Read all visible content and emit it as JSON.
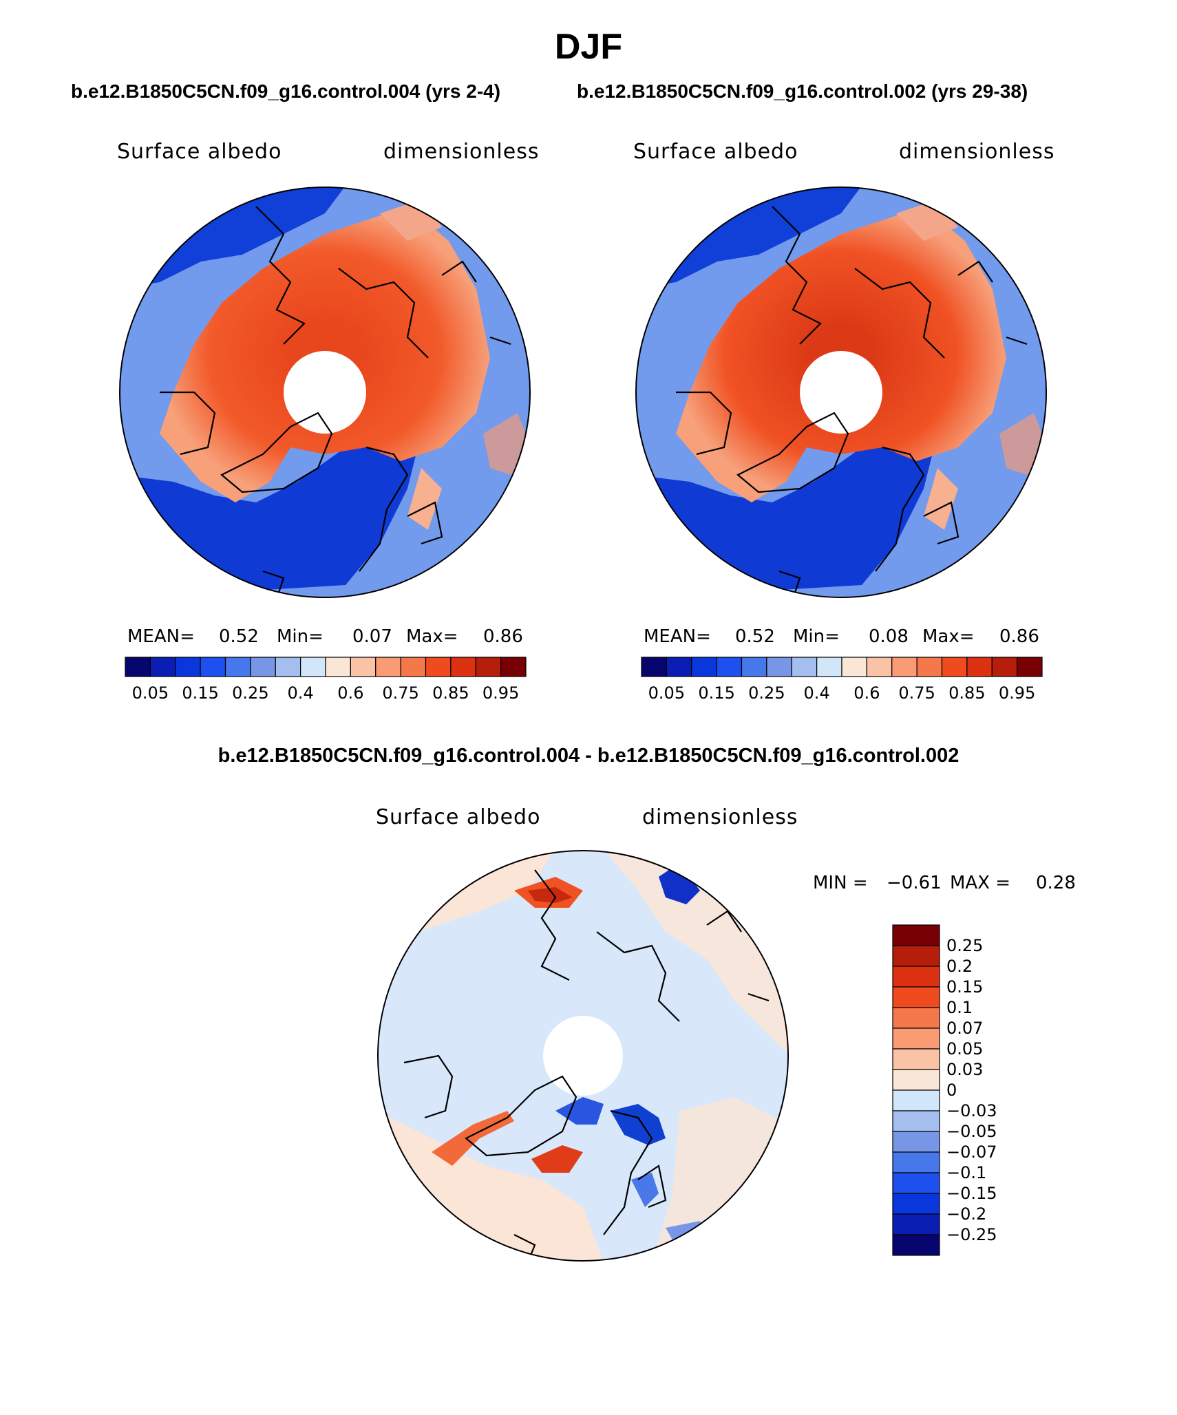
{
  "figure": {
    "title": "DJF",
    "case1_label": "b.e12.B1850C5CN.f09_g16.control.004 (yrs 2-4)",
    "case2_label": "b.e12.B1850C5CN.f09_g16.control.002 (yrs 29-38)",
    "diff_label": "b.e12.B1850C5CN.f09_g16.control.004 - b.e12.B1850C5CN.f09_g16.control.002"
  },
  "panels": [
    {
      "variable": "Surface albedo",
      "units": "dimensionless",
      "mean_label": "MEAN=",
      "mean": "0.52",
      "min_label": "Min=",
      "min": "0.07",
      "max_label": "Max=",
      "max": "0.86"
    },
    {
      "variable": "Surface albedo",
      "units": "dimensionless",
      "mean_label": "MEAN=",
      "mean": "0.52",
      "min_label": "Min=",
      "min": "0.08",
      "max_label": "Max=",
      "max": "0.86"
    }
  ],
  "diff_panel": {
    "variable": "Surface albedo",
    "units": "dimensionless",
    "min_label": "MIN =",
    "min": "−0.61",
    "max_label": "MAX =",
    "max": "0.28"
  },
  "colorbar_abs": {
    "ticks": [
      "0.05",
      "0.15",
      "0.25",
      "0.4",
      "0.6",
      "0.75",
      "0.85",
      "0.95"
    ],
    "colors": [
      "#06066e",
      "#0a1eb4",
      "#0a37dc",
      "#1e50f0",
      "#4678ec",
      "#7896e6",
      "#a5bef0",
      "#d2e6fa",
      "#fae6d7",
      "#fac3a5",
      "#fa9b73",
      "#f5784b",
      "#f04b1e",
      "#dc3212",
      "#b41e0a",
      "#780005"
    ]
  },
  "colorbar_diff": {
    "labels": [
      "0.25",
      "0.2",
      "0.15",
      "0.1",
      "0.07",
      "0.05",
      "0.03",
      "0",
      "−0.03",
      "−0.05",
      "−0.07",
      "−0.1",
      "−0.15",
      "−0.2",
      "−0.25"
    ],
    "colors": [
      "#780005",
      "#b41e0a",
      "#dc3212",
      "#f04b1e",
      "#f5784b",
      "#fa9b73",
      "#fac3a5",
      "#fae6d7",
      "#d2e6fa",
      "#a5bef0",
      "#7896e6",
      "#4678ec",
      "#1e50f0",
      "#0a37dc",
      "#0a1eb4",
      "#06066e"
    ]
  }
}
